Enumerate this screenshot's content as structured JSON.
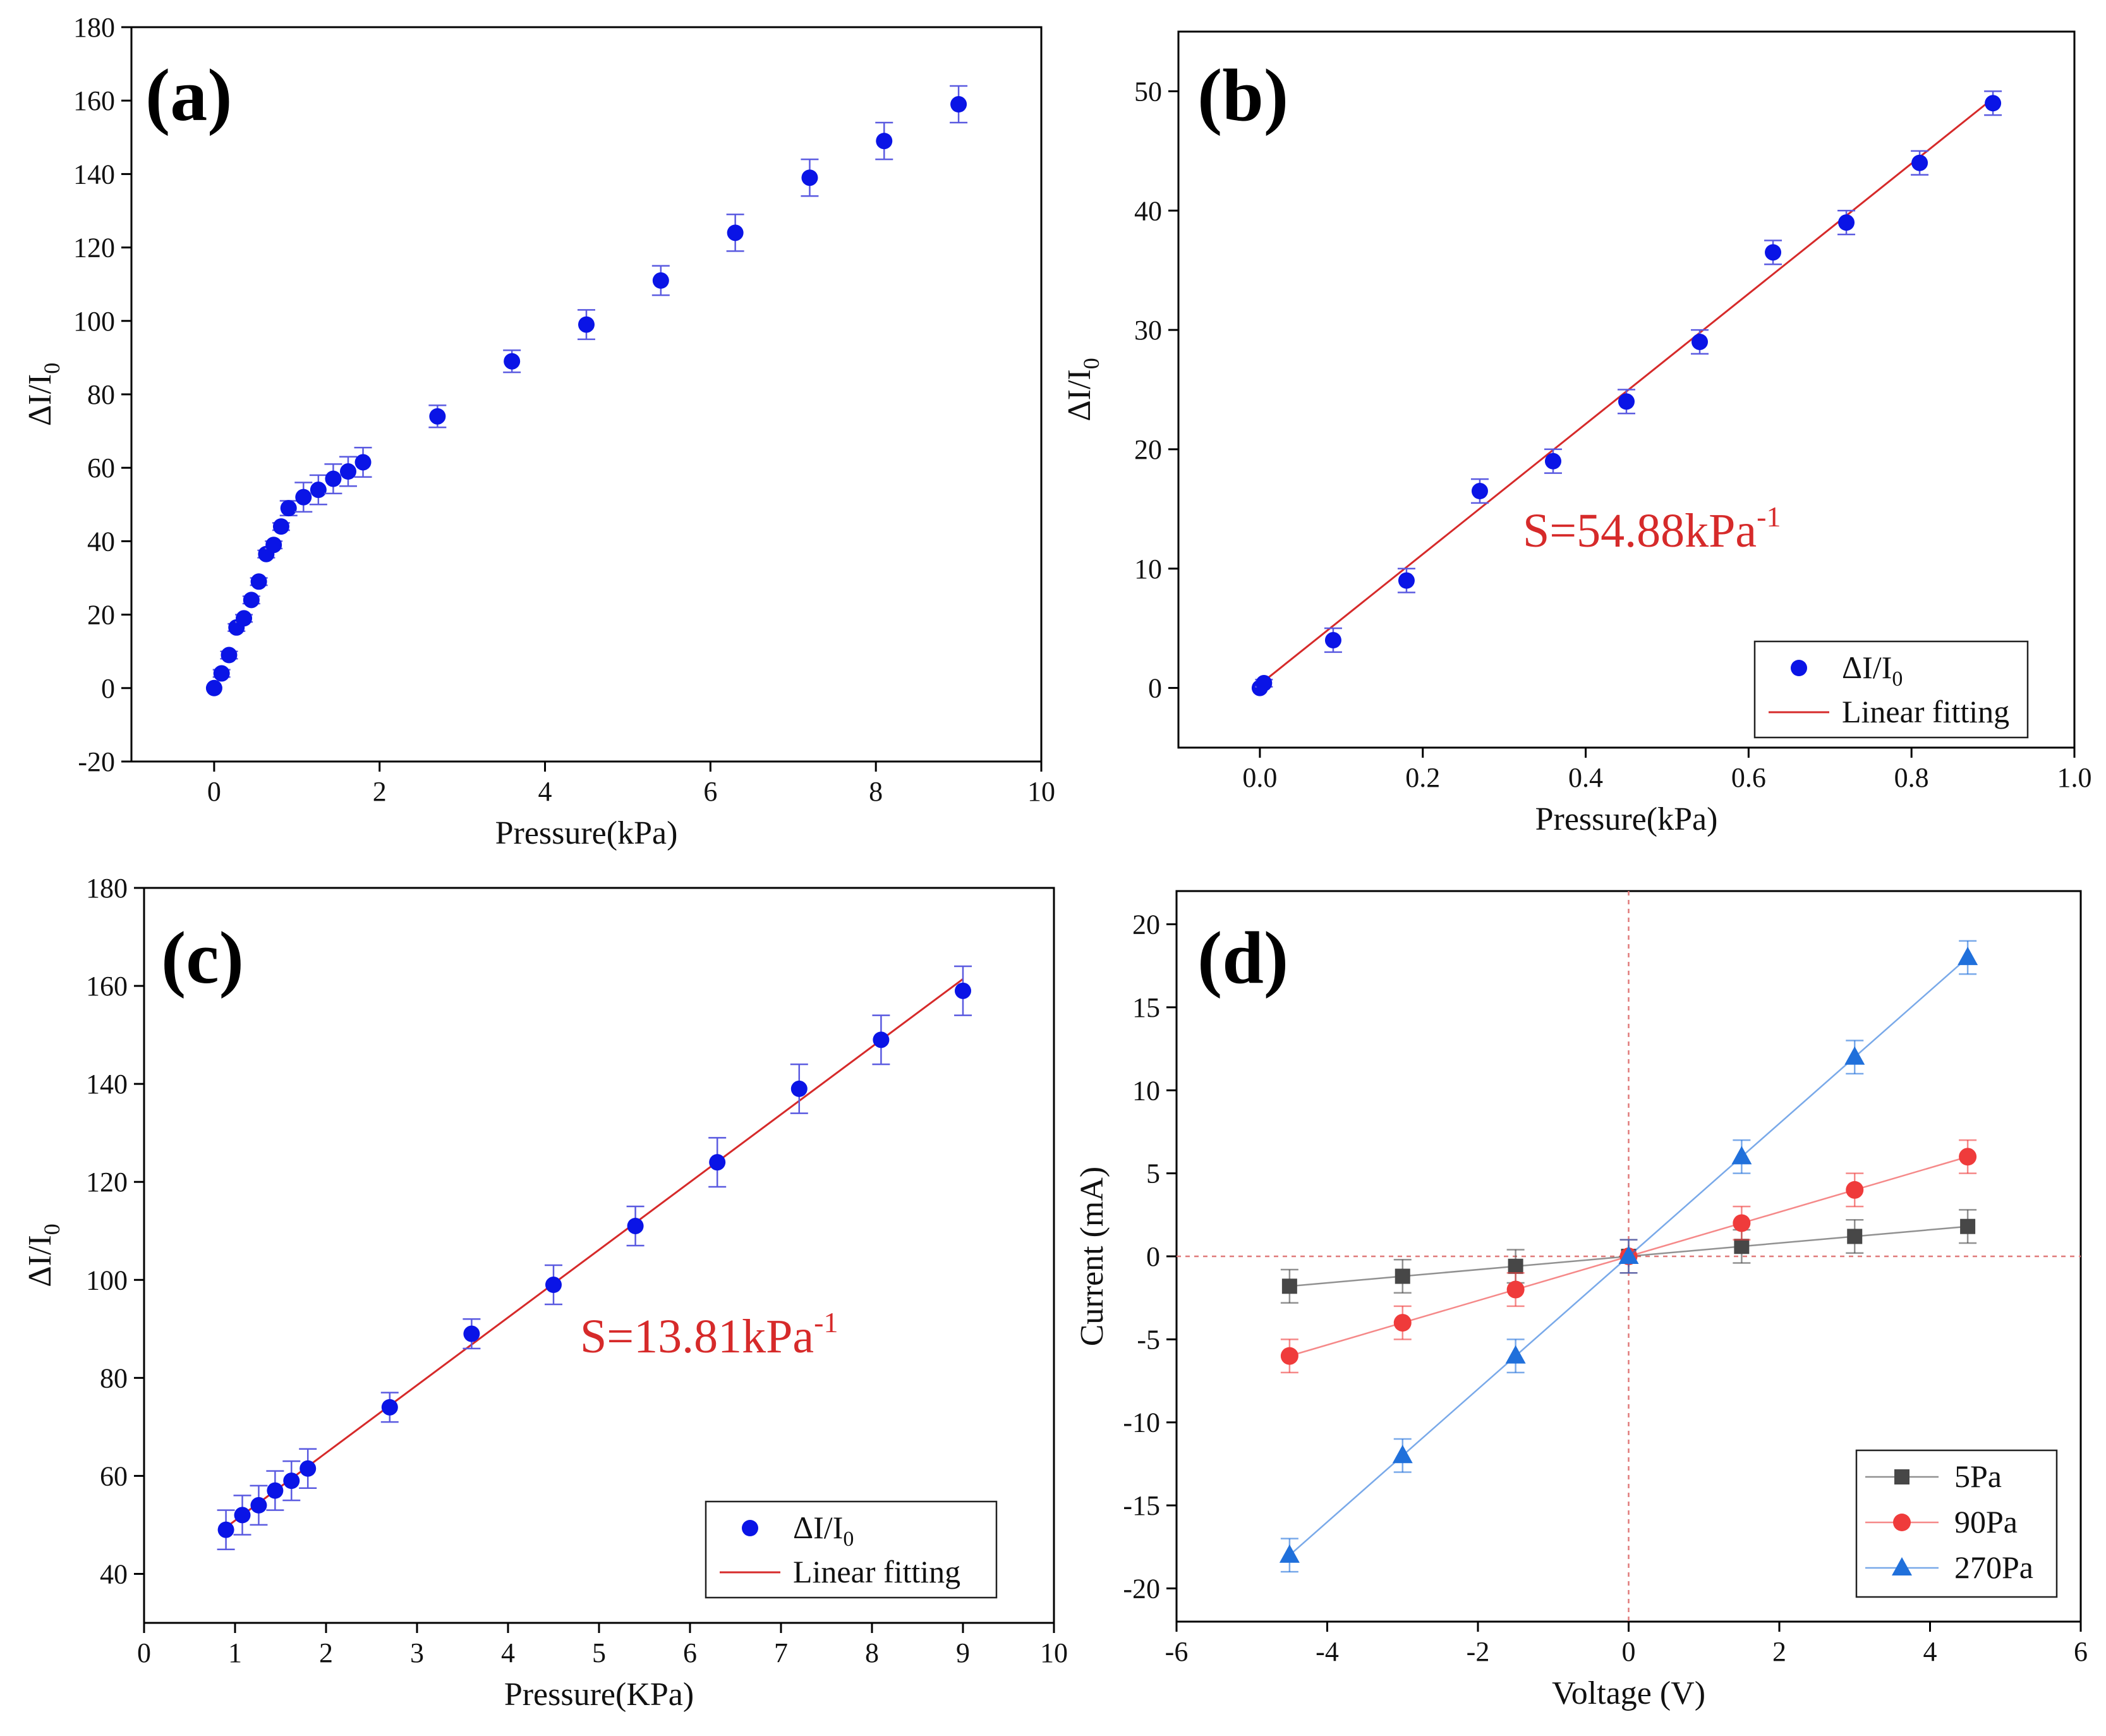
{
  "colors": {
    "marker_blue": "#0a14e6",
    "errbar_blue": "#5a5ae0",
    "fit_red": "#d62a2a",
    "series_gray": "#474747",
    "series_red": "#ef3b3b",
    "series_blue": "#2070db",
    "refline": "#e07a7a"
  },
  "chart_data": [
    {
      "panel": "(a)",
      "type": "scatter",
      "xlabel": "Pressure(kPa)",
      "ylabel_main": "ΔI/I",
      "ylabel_sub": "0",
      "xlim": [
        -1,
        10
      ],
      "ylim": [
        -20,
        180
      ],
      "xticks": [
        0,
        2,
        4,
        6,
        8,
        10
      ],
      "yticks": [
        -20,
        0,
        20,
        40,
        60,
        80,
        100,
        120,
        140,
        160,
        180
      ],
      "tick_labels_x": [
        "0",
        "2",
        "4",
        "6",
        "8",
        "10"
      ],
      "tick_labels_y": [
        "-20",
        "0",
        "20",
        "40",
        "60",
        "80",
        "100",
        "120",
        "140",
        "160",
        "180"
      ],
      "series": [
        {
          "name": "ΔI/I0",
          "x": [
            0,
            0.09,
            0.18,
            0.27,
            0.36,
            0.45,
            0.54,
            0.63,
            0.72,
            0.81,
            0.9,
            1.08,
            1.26,
            1.44,
            1.62,
            1.8,
            2.7,
            3.6,
            4.5,
            5.4,
            6.3,
            7.2,
            8.1,
            9.0
          ],
          "y": [
            0,
            4,
            9,
            16.5,
            19,
            24,
            29,
            36.5,
            39,
            44,
            49,
            52,
            54,
            57,
            59,
            61.5,
            74,
            89,
            99,
            111,
            124,
            139,
            149,
            159
          ],
          "err": [
            0,
            1,
            1,
            1,
            1,
            1,
            1,
            1,
            1,
            1,
            2,
            4,
            4,
            4,
            4,
            4,
            3,
            3,
            4,
            4,
            5,
            5,
            5,
            5
          ]
        }
      ]
    },
    {
      "panel": "(b)",
      "type": "scatter",
      "xlabel": "Pressure(kPa)",
      "ylabel_main": "ΔI/I",
      "ylabel_sub": "0",
      "xlim": [
        -0.1,
        1.0
      ],
      "ylim": [
        -5,
        55
      ],
      "xticks": [
        0.0,
        0.2,
        0.4,
        0.6,
        0.8,
        1.0
      ],
      "yticks": [
        0,
        10,
        20,
        30,
        40,
        50
      ],
      "tick_labels_x": [
        "0.0",
        "0.2",
        "0.4",
        "0.6",
        "0.8",
        "1.0"
      ],
      "tick_labels_y": [
        "0",
        "10",
        "20",
        "30",
        "40",
        "50"
      ],
      "annotation_main": "S=54.88kPa",
      "annotation_sup": "-1",
      "fit": {
        "x": [
          0,
          0.9
        ],
        "y": [
          0.3,
          49.4
        ]
      },
      "legend": [
        "ΔI/I",
        "Linear fitting"
      ],
      "legend_sub": "0",
      "series": [
        {
          "name": "ΔI/I0",
          "x": [
            0,
            0.005,
            0.09,
            0.18,
            0.27,
            0.36,
            0.45,
            0.54,
            0.63,
            0.72,
            0.81,
            0.9
          ],
          "y": [
            0,
            0.4,
            4,
            9,
            16.5,
            19,
            24,
            29,
            36.5,
            39,
            44,
            49
          ],
          "err": [
            0,
            0.3,
            1,
            1,
            1,
            1,
            1,
            1,
            1,
            1,
            1,
            1
          ]
        }
      ]
    },
    {
      "panel": "(c)",
      "type": "scatter",
      "xlabel": "Pressure(KPa)",
      "ylabel_main": "ΔI/I",
      "ylabel_sub": "0",
      "xlim": [
        0,
        10
      ],
      "ylim": [
        30,
        180
      ],
      "xticks": [
        0,
        1,
        2,
        3,
        4,
        5,
        6,
        7,
        8,
        9,
        10
      ],
      "yticks": [
        40,
        60,
        80,
        100,
        120,
        140,
        160,
        180
      ],
      "tick_labels_x": [
        "0",
        "1",
        "2",
        "3",
        "4",
        "5",
        "6",
        "7",
        "8",
        "9",
        "10"
      ],
      "tick_labels_y": [
        "40",
        "60",
        "80",
        "100",
        "120",
        "140",
        "160",
        "180"
      ],
      "annotation_main": "S=13.81kPa",
      "annotation_sup": "-1",
      "fit": {
        "x": [
          0.9,
          9.0
        ],
        "y": [
          49.5,
          161.4
        ]
      },
      "legend": [
        "ΔI/I",
        "Linear fitting"
      ],
      "legend_sub": "0",
      "series": [
        {
          "name": "ΔI/I0",
          "x": [
            0.9,
            1.08,
            1.26,
            1.44,
            1.62,
            1.8,
            2.7,
            3.6,
            4.5,
            5.4,
            6.3,
            7.2,
            8.1,
            9.0
          ],
          "y": [
            49,
            52,
            54,
            57,
            59,
            61.5,
            74,
            89,
            99,
            111,
            124,
            139,
            149,
            159
          ],
          "err": [
            4,
            4,
            4,
            4,
            4,
            4,
            3,
            3,
            4,
            4,
            5,
            5,
            5,
            5
          ]
        }
      ]
    },
    {
      "panel": "(d)",
      "type": "line",
      "xlabel": "Voltage (V)",
      "ylabel": "Current (mA)",
      "xlim": [
        -6,
        6
      ],
      "ylim": [
        -22,
        22
      ],
      "xticks": [
        -6,
        -4,
        -2,
        0,
        2,
        4,
        6
      ],
      "yticks": [
        -20,
        -15,
        -10,
        -5,
        0,
        5,
        10,
        15,
        20
      ],
      "tick_labels_x": [
        "-6",
        "-4",
        "-2",
        "0",
        "2",
        "4",
        "6"
      ],
      "tick_labels_y": [
        "-20",
        "-15",
        "-10",
        "-5",
        "0",
        "5",
        "10",
        "15",
        "20"
      ],
      "legend": [
        "5Pa",
        "90Pa",
        "270Pa"
      ],
      "series": [
        {
          "name": "5Pa",
          "marker": "square",
          "x": [
            -4.5,
            -3,
            -1.5,
            0,
            1.5,
            3,
            4.5
          ],
          "y": [
            -1.8,
            -1.2,
            -0.6,
            0,
            0.6,
            1.2,
            1.8
          ],
          "err": [
            1,
            1,
            1,
            1,
            1,
            1,
            1
          ]
        },
        {
          "name": "90Pa",
          "marker": "circle",
          "x": [
            -4.5,
            -3,
            -1.5,
            0,
            1.5,
            3,
            4.5
          ],
          "y": [
            -6,
            -4,
            -2,
            0,
            2,
            4,
            6
          ],
          "err": [
            1,
            1,
            1,
            1,
            1,
            1,
            1
          ]
        },
        {
          "name": "270Pa",
          "marker": "triangle",
          "x": [
            -4.5,
            -3,
            -1.5,
            0,
            1.5,
            3,
            4.5
          ],
          "y": [
            -18,
            -12,
            -6,
            0,
            6,
            12,
            18
          ],
          "err": [
            1,
            1,
            1,
            1,
            1,
            1,
            1
          ]
        }
      ]
    }
  ]
}
